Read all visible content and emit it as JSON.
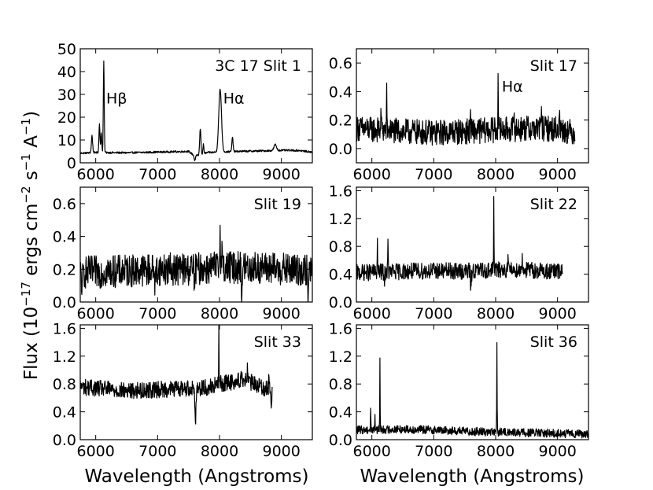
{
  "figure": {
    "ylabel": "Flux (10⁻¹⁷ ergs cm⁻² s⁻¹ Å⁻¹)",
    "ylabel_parts": {
      "lead": "Flux (10",
      "e1": "−17",
      "mid1": " ergs cm",
      "e2": "−2",
      "mid2": " s",
      "e3": "−1",
      "mid3": " A",
      "e4": "−1",
      "tail": ")"
    },
    "xlabel_left": "Wavelength (Angstroms)",
    "xlabel_right": "Wavelength (Angstroms)"
  },
  "chart_data": [
    {
      "type": "line",
      "panel": "3C 17 Slit 1",
      "label": "3C 17 Slit 1",
      "xlim": [
        5750,
        9500
      ],
      "ylim": [
        0,
        50
      ],
      "xticks": [
        6000,
        7000,
        8000,
        9000
      ],
      "yticks": [
        0,
        10,
        20,
        30,
        40,
        50
      ],
      "ytick_labels": [
        "0",
        "10",
        "20",
        "30",
        "40",
        "50"
      ],
      "annotations": [
        {
          "text": "Hβ",
          "x": 6170,
          "y": 26
        },
        {
          "text": "Hα",
          "x": 8060,
          "y": 26
        }
      ],
      "baseline": [
        [
          5750,
          4.2
        ],
        [
          6000,
          4.5
        ],
        [
          6500,
          4.4
        ],
        [
          7000,
          4.7
        ],
        [
          7500,
          5.0
        ],
        [
          7600,
          3.0
        ],
        [
          7700,
          3.5
        ],
        [
          7800,
          4.5
        ],
        [
          8300,
          5.0
        ],
        [
          8800,
          5.3
        ],
        [
          9000,
          5.5
        ],
        [
          9300,
          5.4
        ],
        [
          9500,
          4.6
        ]
      ],
      "noise": 0.4,
      "lines": [
        [
          5940,
          12,
          10
        ],
        [
          6060,
          17,
          8
        ],
        [
          6090,
          13,
          8
        ],
        [
          6130,
          45,
          7
        ],
        [
          7690,
          15,
          10
        ],
        [
          7740,
          8,
          8
        ],
        [
          8010,
          32,
          22
        ],
        [
          8210,
          11,
          10
        ],
        [
          8900,
          8,
          20
        ]
      ],
      "absorption": [
        [
          7600,
          -2,
          10
        ]
      ]
    },
    {
      "type": "line",
      "panel": "Slit 17",
      "label": "Slit 17",
      "xlim": [
        5750,
        9500
      ],
      "ylim": [
        -0.1,
        0.7
      ],
      "xticks": [
        6000,
        7000,
        8000,
        9000
      ],
      "yticks": [
        0.0,
        0.2,
        0.4,
        0.6
      ],
      "ytick_labels": [
        "0.0",
        "0.2",
        "0.4",
        "0.6"
      ],
      "x_end": 9280,
      "annotations": [
        {
          "text": "Hα",
          "x": 8100,
          "y": 0.4
        }
      ],
      "baseline": [
        [
          5750,
          0.14
        ],
        [
          6500,
          0.12
        ],
        [
          7000,
          0.11
        ],
        [
          7500,
          0.12
        ],
        [
          8000,
          0.13
        ],
        [
          8500,
          0.14
        ],
        [
          9000,
          0.14
        ],
        [
          9280,
          0.11
        ]
      ],
      "noise": 0.09,
      "lines": [
        [
          8040,
          0.56,
          4
        ],
        [
          6240,
          0.38,
          4
        ],
        [
          8740,
          0.35,
          4
        ],
        [
          6150,
          0.28,
          4
        ],
        [
          7590,
          0.27,
          4
        ],
        [
          9030,
          0.28,
          4
        ],
        [
          8300,
          0.25,
          4
        ]
      ],
      "absorption": []
    },
    {
      "type": "line",
      "panel": "Slit 19",
      "label": "Slit 19",
      "xlim": [
        5750,
        9500
      ],
      "ylim": [
        0.0,
        0.7
      ],
      "xticks": [
        6000,
        7000,
        8000,
        9000
      ],
      "yticks": [
        0.0,
        0.2,
        0.4,
        0.6
      ],
      "ytick_labels": [
        "0.0",
        "0.2",
        "0.4",
        "0.6"
      ],
      "baseline": [
        [
          5750,
          0.18
        ],
        [
          6500,
          0.19
        ],
        [
          7000,
          0.2
        ],
        [
          7500,
          0.2
        ],
        [
          8000,
          0.21
        ],
        [
          8500,
          0.21
        ],
        [
          9000,
          0.2
        ],
        [
          9500,
          0.19
        ]
      ],
      "noise": 0.1,
      "lines": [
        [
          8010,
          0.56,
          4
        ],
        [
          8040,
          0.36,
          5
        ]
      ],
      "absorption": [
        [
          5780,
          -0.15,
          6
        ],
        [
          6960,
          -0.1,
          6
        ],
        [
          7600,
          -0.1,
          7
        ],
        [
          8360,
          -0.2,
          5
        ],
        [
          9430,
          -0.18,
          7
        ]
      ]
    },
    {
      "type": "line",
      "panel": "Slit 22",
      "label": "Slit 22",
      "xlim": [
        5750,
        9500
      ],
      "ylim": [
        0.0,
        1.65
      ],
      "xticks": [
        6000,
        7000,
        8000,
        9000
      ],
      "yticks": [
        0.0,
        0.4,
        0.8,
        1.2,
        1.6
      ],
      "ytick_labels": [
        "0.0",
        "0.4",
        "0.8",
        "1.2",
        "1.6"
      ],
      "x_end": 9080,
      "baseline": [
        [
          5750,
          0.42
        ],
        [
          6500,
          0.44
        ],
        [
          7000,
          0.45
        ],
        [
          7500,
          0.44
        ],
        [
          8000,
          0.46
        ],
        [
          8500,
          0.46
        ],
        [
          9080,
          0.43
        ]
      ],
      "noise": 0.12,
      "lines": [
        [
          7970,
          1.6,
          3
        ],
        [
          6090,
          0.85,
          4
        ],
        [
          6260,
          0.8,
          4
        ],
        [
          8200,
          0.8,
          4
        ],
        [
          8430,
          0.72,
          4
        ]
      ],
      "absorption": [
        [
          7600,
          -0.2,
          8
        ],
        [
          6200,
          -0.22,
          4
        ]
      ]
    },
    {
      "type": "line",
      "panel": "Slit 33",
      "label": "Slit 33",
      "xlim": [
        5750,
        9500
      ],
      "ylim": [
        0.0,
        1.65
      ],
      "xticks": [
        6000,
        7000,
        8000,
        9000
      ],
      "yticks": [
        0.0,
        0.4,
        0.8,
        1.2,
        1.6
      ],
      "ytick_labels": [
        "0.0",
        "0.4",
        "0.8",
        "1.2",
        "1.6"
      ],
      "x_end": 8850,
      "baseline": [
        [
          5750,
          0.76
        ],
        [
          6500,
          0.7
        ],
        [
          7000,
          0.72
        ],
        [
          7500,
          0.74
        ],
        [
          7800,
          0.75
        ],
        [
          8000,
          0.8
        ],
        [
          8400,
          0.86
        ],
        [
          8850,
          0.7
        ]
      ],
      "noise": 0.12,
      "lines": [
        [
          7990,
          1.62,
          3
        ],
        [
          8350,
          1.1,
          4
        ],
        [
          8450,
          1.05,
          4
        ],
        [
          8800,
          0.95,
          4
        ]
      ],
      "absorption": [
        [
          7610,
          -0.5,
          8
        ],
        [
          8840,
          -0.3,
          4
        ]
      ]
    },
    {
      "type": "line",
      "panel": "Slit 36",
      "label": "Slit 36",
      "xlim": [
        5750,
        9500
      ],
      "ylim": [
        0.0,
        1.65
      ],
      "xticks": [
        6000,
        7000,
        8000,
        9000
      ],
      "yticks": [
        0.0,
        0.4,
        0.8,
        1.2,
        1.6
      ],
      "ytick_labels": [
        "0.0",
        "0.4",
        "0.8",
        "1.2",
        "1.6"
      ],
      "baseline": [
        [
          5750,
          0.14
        ],
        [
          6500,
          0.15
        ],
        [
          7000,
          0.14
        ],
        [
          7500,
          0.12
        ],
        [
          8000,
          0.11
        ],
        [
          8500,
          0.1
        ],
        [
          9000,
          0.09
        ],
        [
          9500,
          0.08
        ]
      ],
      "noise": 0.06,
      "lines": [
        [
          6130,
          1.15,
          3
        ],
        [
          8020,
          1.35,
          3
        ],
        [
          5980,
          0.45,
          3
        ],
        [
          6050,
          0.38,
          3
        ]
      ],
      "absorption": []
    }
  ]
}
